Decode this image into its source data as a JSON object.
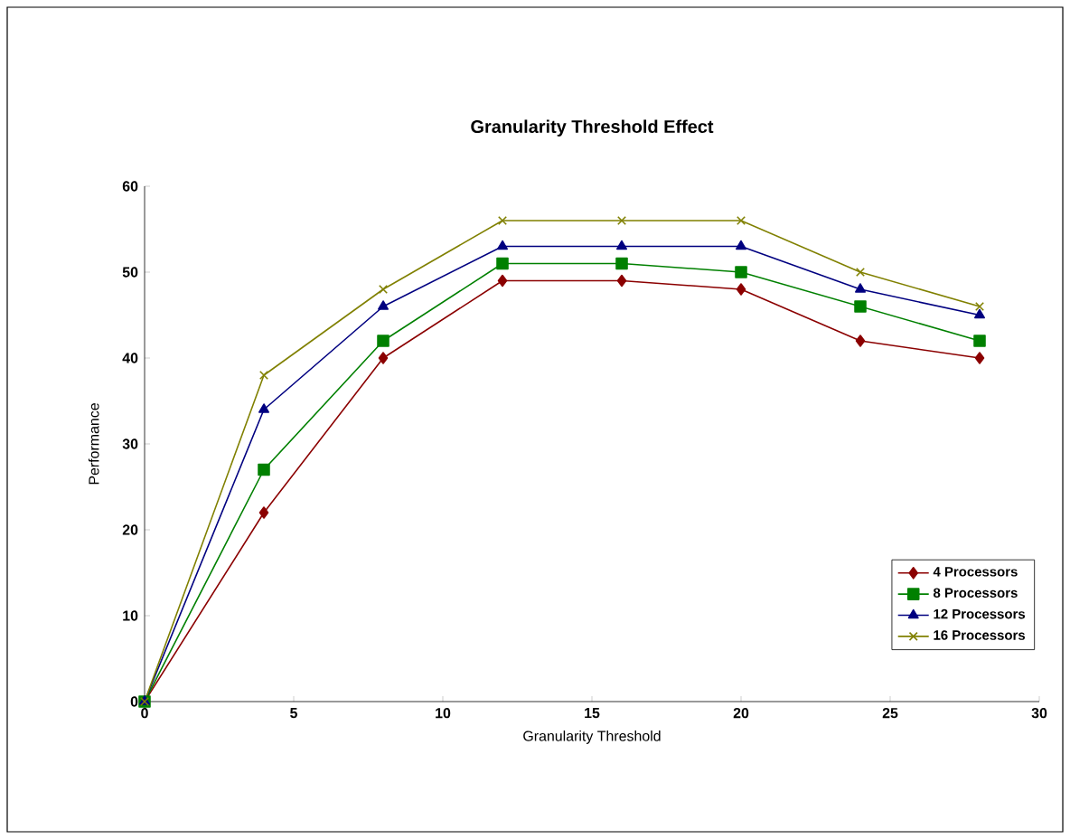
{
  "chart_data": {
    "type": "line",
    "title": "Granularity Threshold Effect",
    "xlabel": "Granularity Threshold",
    "ylabel": "Performance",
    "x": [
      0,
      4,
      8,
      12,
      16,
      20,
      24,
      28
    ],
    "series": [
      {
        "name": "4 Processors",
        "color": "#8b0000",
        "marker": "diamond",
        "values": [
          0,
          22,
          40,
          49,
          49,
          48,
          42,
          40
        ]
      },
      {
        "name": "8 Processors",
        "color": "#008000",
        "marker": "square",
        "values": [
          0,
          27,
          42,
          51,
          51,
          50,
          46,
          42
        ]
      },
      {
        "name": "12 Processors",
        "color": "#000080",
        "marker": "triangle",
        "values": [
          0,
          34,
          46,
          53,
          53,
          53,
          48,
          45
        ]
      },
      {
        "name": "16 Processors",
        "color": "#808000",
        "marker": "cross",
        "values": [
          0,
          38,
          48,
          56,
          56,
          56,
          50,
          46
        ]
      }
    ],
    "xlim": [
      0,
      30
    ],
    "xticks": [
      0,
      5,
      10,
      15,
      20,
      25,
      30
    ],
    "ylim": [
      0,
      60
    ],
    "yticks": [
      0,
      10,
      20,
      30,
      40,
      50,
      60
    ],
    "grid": false,
    "legend": "right",
    "line_style": "solid"
  }
}
